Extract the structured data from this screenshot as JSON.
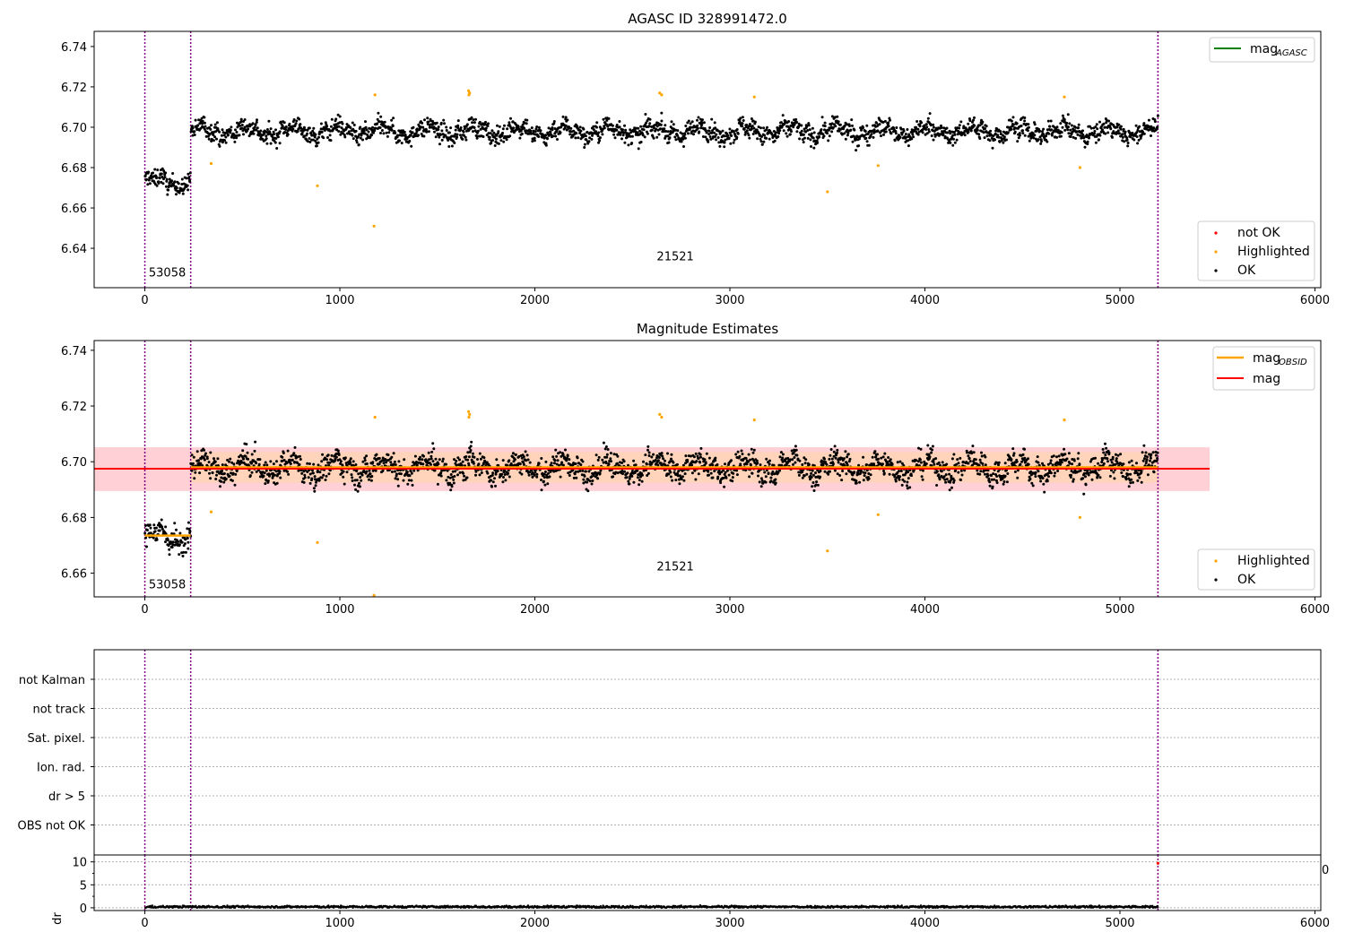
{
  "figure": {
    "title": "AGASC ID 328991472.0"
  },
  "chart_data": [
    {
      "type": "scatter",
      "title": "",
      "xlabel": "",
      "ylabel": "",
      "xlim": [
        -260,
        6030
      ],
      "ylim": [
        6.6205,
        6.7475
      ],
      "xticks": [
        0,
        1000,
        2000,
        3000,
        4000,
        5000,
        6000
      ],
      "yticks": [
        6.64,
        6.66,
        6.68,
        6.7,
        6.72,
        6.74
      ],
      "vlines": [
        0,
        235,
        5195
      ],
      "obsid_labels": [
        {
          "text": "53058",
          "x": 115,
          "y": 6.626
        },
        {
          "text": "21521",
          "x": 2720,
          "y": 6.634
        }
      ],
      "series": [
        {
          "name": "OK",
          "color": "#000000",
          "kind": "points",
          "segments": [
            {
              "x0": 0,
              "x1": 235,
              "center": 6.673,
              "spread": 0.006
            },
            {
              "x0": 235,
              "x1": 5195,
              "center": 6.698,
              "spread": 0.006
            }
          ]
        },
        {
          "name": "Highlighted",
          "color": "#ffa500",
          "kind": "points",
          "points": [
            [
              340,
              6.682
            ],
            [
              885,
              6.671
            ],
            [
              1175,
              6.651
            ],
            [
              1180,
              6.716
            ],
            [
              1660,
              6.718
            ],
            [
              1662,
              6.716
            ],
            [
              1665,
              6.717
            ],
            [
              2640,
              6.717
            ],
            [
              2650,
              6.716
            ],
            [
              3125,
              6.715
            ],
            [
              3500,
              6.668
            ],
            [
              3760,
              6.681
            ],
            [
              4715,
              6.715
            ],
            [
              4795,
              6.68
            ]
          ]
        },
        {
          "name": "not OK",
          "color": "#ff0000",
          "kind": "points",
          "points": []
        },
        {
          "name": "mag_AGASC",
          "color": "#008000",
          "kind": "line",
          "values": []
        }
      ],
      "legends": [
        {
          "position": "top-right",
          "entries": [
            "mag_AGASC"
          ]
        },
        {
          "position": "bottom-right",
          "entries": [
            "not OK",
            "Highlighted",
            "OK"
          ]
        }
      ]
    },
    {
      "type": "scatter",
      "title": "Magnitude Estimates",
      "xlabel": "",
      "ylabel": "",
      "xlim": [
        -260,
        6030
      ],
      "ylim": [
        6.6515,
        6.7435
      ],
      "xticks": [
        0,
        1000,
        2000,
        3000,
        4000,
        5000,
        6000
      ],
      "yticks": [
        6.66,
        6.68,
        6.7,
        6.72,
        6.74
      ],
      "vlines": [
        0,
        235,
        5195
      ],
      "obsid_labels": [
        {
          "text": "53058",
          "x": 115,
          "y": 6.6545
        },
        {
          "text": "21521",
          "x": 2720,
          "y": 6.661
        }
      ],
      "mag": {
        "value": 6.6975,
        "band": [
          6.6895,
          6.7052
        ],
        "x0": -260,
        "x1": 5460
      },
      "mag_obsid": [
        {
          "x0": 0,
          "x1": 235,
          "value": 6.6735
        },
        {
          "x0": 235,
          "x1": 5195,
          "value": 6.698,
          "band": [
            6.6925,
            6.7035
          ]
        }
      ],
      "series": [
        {
          "name": "OK",
          "color": "#000000",
          "kind": "points",
          "segments": [
            {
              "x0": 0,
              "x1": 235,
              "center": 6.673,
              "spread": 0.006
            },
            {
              "x0": 235,
              "x1": 5195,
              "center": 6.698,
              "spread": 0.006
            }
          ]
        },
        {
          "name": "Highlighted",
          "color": "#ffa500",
          "kind": "points",
          "points": [
            [
              340,
              6.682
            ],
            [
              885,
              6.671
            ],
            [
              1175,
              6.652
            ],
            [
              1180,
              6.716
            ],
            [
              1660,
              6.718
            ],
            [
              1662,
              6.716
            ],
            [
              1665,
              6.717
            ],
            [
              2640,
              6.717
            ],
            [
              2650,
              6.716
            ],
            [
              3125,
              6.715
            ],
            [
              3500,
              6.668
            ],
            [
              3760,
              6.681
            ],
            [
              4715,
              6.715
            ],
            [
              4795,
              6.68
            ]
          ]
        },
        {
          "name": "mag_OBSID",
          "color": "#ffa500",
          "kind": "line"
        },
        {
          "name": "mag",
          "color": "#ff0000",
          "kind": "line"
        }
      ],
      "legends": [
        {
          "position": "top-right",
          "entries": [
            "mag_OBSID",
            "mag"
          ]
        },
        {
          "position": "bottom-right",
          "entries": [
            "Highlighted",
            "OK"
          ]
        }
      ]
    },
    {
      "type": "scatter",
      "title": "",
      "xlabel": "",
      "ylabel": "",
      "categories": [
        "not Kalman",
        "not track",
        "Sat. pixel.",
        "Ion. rad.",
        "dr > 5",
        "OBS not OK"
      ],
      "xlim": [
        -260,
        6030
      ],
      "vlines": [
        0,
        235,
        5195
      ],
      "grid": true,
      "series": []
    },
    {
      "type": "scatter",
      "title": "",
      "xlabel": "",
      "ylabel": "dr",
      "xlim": [
        -260,
        6030
      ],
      "ylim": [
        -0.6,
        11.5
      ],
      "xticks": [
        0,
        1000,
        2000,
        3000,
        4000,
        5000,
        6000
      ],
      "yticks": [
        0,
        5,
        10
      ],
      "minor_yticks": [
        2.5,
        7.5
      ],
      "vlines": [
        0,
        235,
        5195
      ],
      "grid": true,
      "edge_label": "0",
      "series": [
        {
          "name": "dr",
          "color": "#000000",
          "kind": "points",
          "range": [
            0,
            5195
          ],
          "center": 0.2,
          "spread": 0.25
        },
        {
          "name": "dr not OK",
          "color": "#ff0000",
          "kind": "points",
          "points": [
            [
              5195,
              9.7
            ]
          ]
        }
      ]
    }
  ],
  "legend_labels": {
    "mag_agasc_base": "mag",
    "mag_agasc_sub": "AGASC",
    "mag_obsid_base": "mag",
    "mag_obsid_sub": "OBSID",
    "mag": "mag",
    "not_ok": "not OK",
    "highlighted": "Highlighted",
    "ok": "OK"
  },
  "colors": {
    "ok": "#000000",
    "highlighted": "#ffa500",
    "not_ok": "#ff0000",
    "mag_agasc": "#008000",
    "mag_obsid": "#ffa500",
    "mag": "#ff0000",
    "vline": "#800080",
    "band_red": "#ffc0c8",
    "band_orange": "#ffd5b5"
  }
}
